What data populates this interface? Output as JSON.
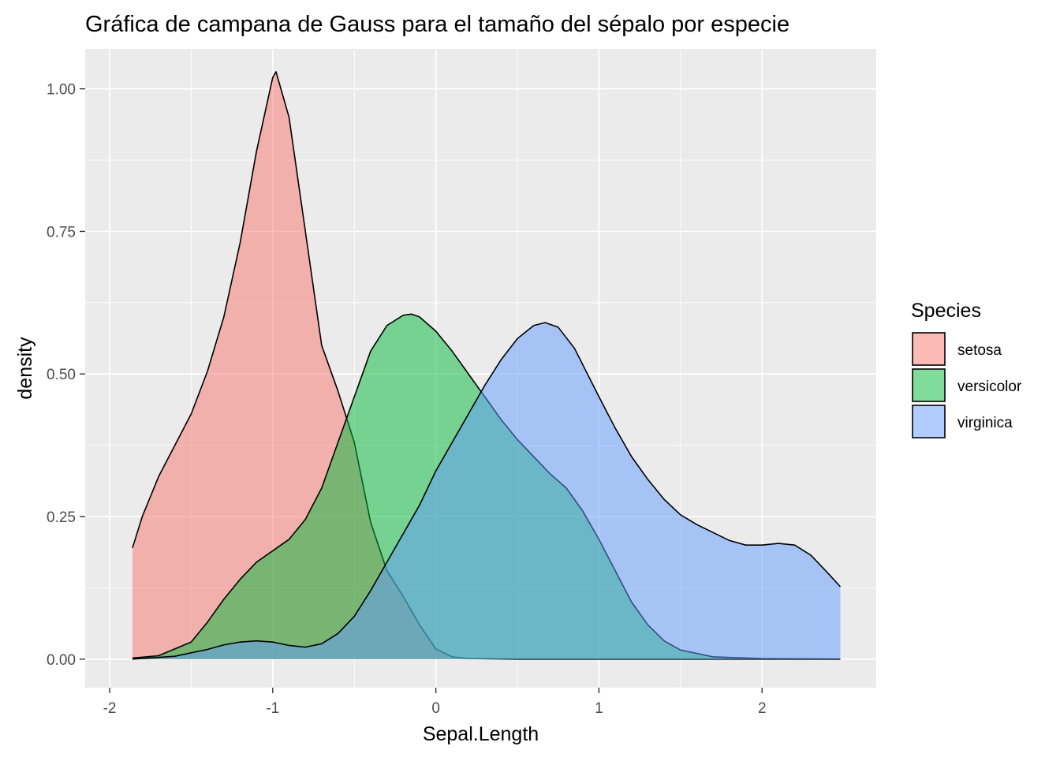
{
  "chart_data": {
    "type": "area",
    "title": "Gráfica de campana de Gauss para el tamaño del sépalo por especie",
    "xlabel": "Sepal.Length",
    "ylabel": "density",
    "xlim": [
      -2.15,
      2.7
    ],
    "ylim": [
      -0.05,
      1.07
    ],
    "x_ticks": [
      -2,
      -1,
      0,
      1,
      2
    ],
    "x_tick_labels": [
      "-2",
      "-1",
      "0",
      "1",
      "2"
    ],
    "y_ticks": [
      0,
      0.25,
      0.5,
      0.75,
      1.0
    ],
    "y_tick_labels": [
      "0.00",
      "0.25",
      "0.50",
      "0.75",
      "1.00"
    ],
    "grid": true,
    "legend": {
      "title": "Species",
      "position": "right"
    },
    "series": [
      {
        "name": "setosa",
        "color": "#F8766D",
        "points": [
          [
            -1.86,
            0.195
          ],
          [
            -1.8,
            0.25
          ],
          [
            -1.7,
            0.32
          ],
          [
            -1.6,
            0.375
          ],
          [
            -1.5,
            0.43
          ],
          [
            -1.4,
            0.505
          ],
          [
            -1.3,
            0.6
          ],
          [
            -1.2,
            0.73
          ],
          [
            -1.1,
            0.89
          ],
          [
            -1.0,
            1.02
          ],
          [
            -0.98,
            1.03
          ],
          [
            -0.9,
            0.95
          ],
          [
            -0.8,
            0.75
          ],
          [
            -0.7,
            0.55
          ],
          [
            -0.6,
            0.47
          ],
          [
            -0.5,
            0.38
          ],
          [
            -0.4,
            0.24
          ],
          [
            -0.3,
            0.155
          ],
          [
            -0.2,
            0.11
          ],
          [
            -0.1,
            0.06
          ],
          [
            0.0,
            0.018
          ],
          [
            0.1,
            0.004
          ],
          [
            0.2,
            0.001
          ],
          [
            0.5,
            0.0
          ],
          [
            1.0,
            0.0
          ],
          [
            1.5,
            0.0
          ],
          [
            2.0,
            0.0
          ],
          [
            2.48,
            0.0
          ]
        ]
      },
      {
        "name": "versicolor",
        "color": "#00BA38",
        "points": [
          [
            -1.86,
            0.002
          ],
          [
            -1.7,
            0.006
          ],
          [
            -1.5,
            0.03
          ],
          [
            -1.4,
            0.065
          ],
          [
            -1.3,
            0.105
          ],
          [
            -1.2,
            0.14
          ],
          [
            -1.1,
            0.17
          ],
          [
            -1.0,
            0.19
          ],
          [
            -0.9,
            0.21
          ],
          [
            -0.8,
            0.245
          ],
          [
            -0.7,
            0.3
          ],
          [
            -0.6,
            0.38
          ],
          [
            -0.5,
            0.46
          ],
          [
            -0.4,
            0.54
          ],
          [
            -0.3,
            0.585
          ],
          [
            -0.2,
            0.603
          ],
          [
            -0.15,
            0.605
          ],
          [
            -0.1,
            0.6
          ],
          [
            0.0,
            0.575
          ],
          [
            0.1,
            0.54
          ],
          [
            0.2,
            0.5
          ],
          [
            0.3,
            0.46
          ],
          [
            0.4,
            0.42
          ],
          [
            0.5,
            0.385
          ],
          [
            0.6,
            0.355
          ],
          [
            0.7,
            0.325
          ],
          [
            0.8,
            0.3
          ],
          [
            0.9,
            0.26
          ],
          [
            1.0,
            0.21
          ],
          [
            1.1,
            0.155
          ],
          [
            1.2,
            0.1
          ],
          [
            1.3,
            0.06
          ],
          [
            1.4,
            0.032
          ],
          [
            1.5,
            0.016
          ],
          [
            1.7,
            0.004
          ],
          [
            2.0,
            0.001
          ],
          [
            2.48,
            0.0
          ]
        ]
      },
      {
        "name": "virginica",
        "color": "#619CFF",
        "points": [
          [
            -1.86,
            0.0
          ],
          [
            -1.6,
            0.005
          ],
          [
            -1.4,
            0.017
          ],
          [
            -1.3,
            0.025
          ],
          [
            -1.2,
            0.03
          ],
          [
            -1.1,
            0.032
          ],
          [
            -1.0,
            0.03
          ],
          [
            -0.9,
            0.024
          ],
          [
            -0.8,
            0.021
          ],
          [
            -0.7,
            0.027
          ],
          [
            -0.6,
            0.045
          ],
          [
            -0.5,
            0.075
          ],
          [
            -0.4,
            0.12
          ],
          [
            -0.3,
            0.17
          ],
          [
            -0.2,
            0.22
          ],
          [
            -0.1,
            0.27
          ],
          [
            0.0,
            0.33
          ],
          [
            0.1,
            0.38
          ],
          [
            0.2,
            0.43
          ],
          [
            0.3,
            0.48
          ],
          [
            0.4,
            0.525
          ],
          [
            0.5,
            0.562
          ],
          [
            0.6,
            0.585
          ],
          [
            0.67,
            0.59
          ],
          [
            0.75,
            0.582
          ],
          [
            0.85,
            0.545
          ],
          [
            1.0,
            0.46
          ],
          [
            1.1,
            0.405
          ],
          [
            1.2,
            0.355
          ],
          [
            1.3,
            0.315
          ],
          [
            1.4,
            0.28
          ],
          [
            1.5,
            0.253
          ],
          [
            1.6,
            0.236
          ],
          [
            1.7,
            0.222
          ],
          [
            1.8,
            0.208
          ],
          [
            1.9,
            0.2
          ],
          [
            2.0,
            0.2
          ],
          [
            2.1,
            0.203
          ],
          [
            2.2,
            0.2
          ],
          [
            2.3,
            0.182
          ],
          [
            2.4,
            0.152
          ],
          [
            2.48,
            0.127
          ]
        ]
      }
    ]
  }
}
